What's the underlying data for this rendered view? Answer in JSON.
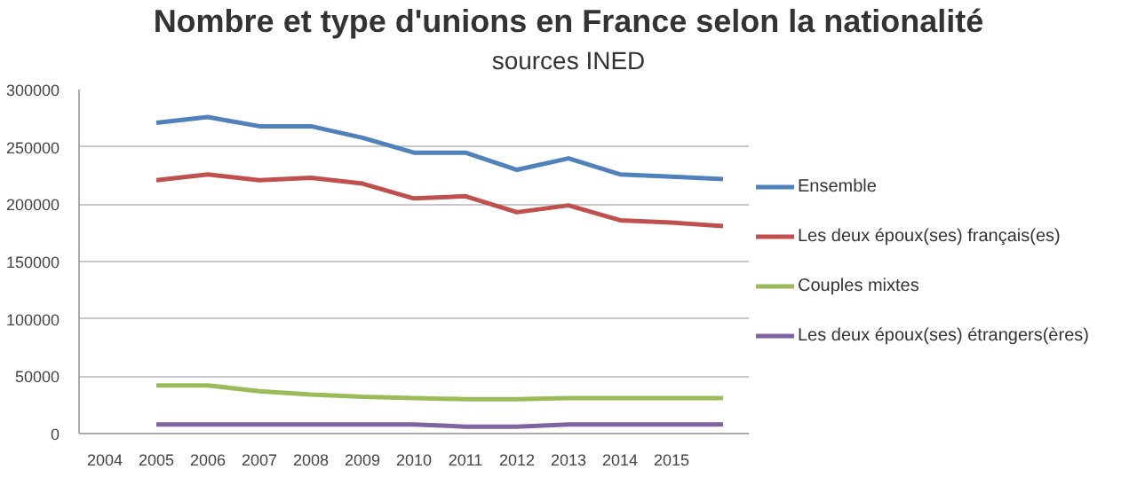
{
  "chart_data": {
    "type": "line",
    "title": "Nombre et type d'unions en France  selon la nationalité",
    "subtitle": "sources INED",
    "categories": [
      "2004",
      "2005",
      "2006",
      "2007",
      "2008",
      "2009",
      "2010",
      "2011",
      "2012",
      "2013",
      "2014",
      "2015",
      null
    ],
    "series": [
      {
        "name": "Ensemble",
        "color": "#4f81bd",
        "values": [
          null,
          271000,
          276000,
          268000,
          268000,
          258000,
          245000,
          245000,
          230000,
          240000,
          226000,
          224000,
          222000
        ]
      },
      {
        "name": "Les deux époux(ses) français(es)",
        "color": "#c0504d",
        "values": [
          null,
          221000,
          226000,
          221000,
          223000,
          218000,
          205000,
          207000,
          193000,
          199000,
          186000,
          184000,
          181000
        ]
      },
      {
        "name": "Couples mixtes",
        "color": "#9bbb59",
        "values": [
          null,
          42000,
          42000,
          37000,
          34000,
          32000,
          31000,
          30000,
          30000,
          31000,
          31000,
          31000,
          31000
        ]
      },
      {
        "name": "Les deux époux(ses) étrangers(ères)",
        "color": "#8064a2",
        "values": [
          null,
          8000,
          8000,
          8000,
          8000,
          8000,
          8000,
          6000,
          6000,
          8000,
          8000,
          8000,
          8000
        ]
      }
    ],
    "ylim": [
      0,
      300000
    ],
    "yticks": [
      0,
      50000,
      100000,
      150000,
      200000,
      250000,
      300000
    ],
    "grid": "y",
    "legend": "right",
    "marker": "none",
    "line_style": "solid"
  }
}
